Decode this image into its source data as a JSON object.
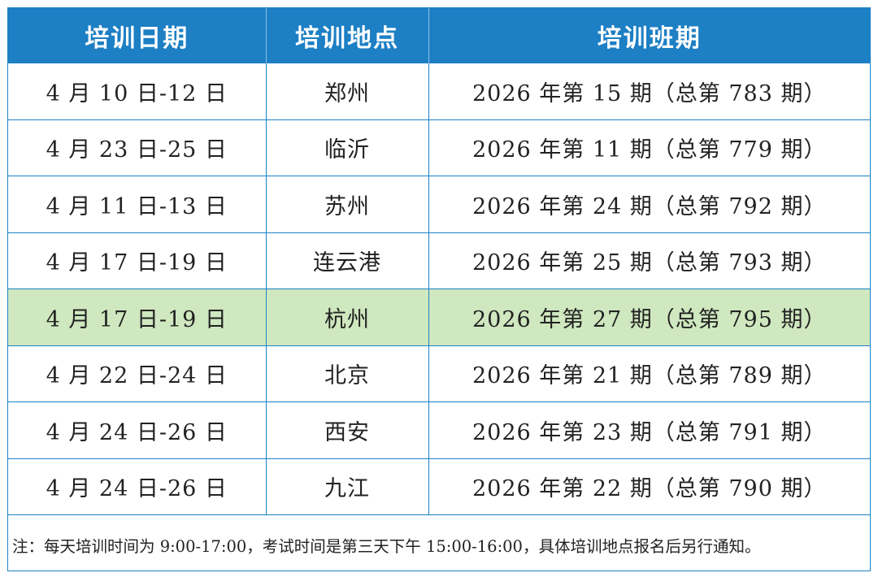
{
  "table": {
    "headers": [
      "培训日期",
      "培训地点",
      "培训班期"
    ],
    "rows": [
      {
        "date": "4 月 10 日-12 日",
        "location": "郑州",
        "session": "2026 年第 15 期（总第 783 期）",
        "highlight": false
      },
      {
        "date": "4 月 23 日-25 日",
        "location": "临沂",
        "session": "2026 年第 11 期（总第 779 期）",
        "highlight": false
      },
      {
        "date": "4 月 11 日-13 日",
        "location": "苏州",
        "session": "2026 年第 24 期（总第 792 期）",
        "highlight": false
      },
      {
        "date": "4 月 17 日-19 日",
        "location": "连云港",
        "session": "2026 年第 25 期（总第 793 期）",
        "highlight": false
      },
      {
        "date": "4 月 17 日-19 日",
        "location": "杭州",
        "session": "2026 年第 27 期（总第 795 期）",
        "highlight": true
      },
      {
        "date": "4 月 22 日-24 日",
        "location": "北京",
        "session": "2026 年第 21 期（总第 789 期）",
        "highlight": false
      },
      {
        "date": "4 月 24 日-26 日",
        "location": "西安",
        "session": "2026 年第 23 期（总第 791 期）",
        "highlight": false
      },
      {
        "date": "4 月 24 日-26 日",
        "location": "九江",
        "session": "2026 年第 22 期（总第 790 期）",
        "highlight": false
      }
    ]
  },
  "note": "注：每天培训时间为 9:00-17:00，考试时间是第三天下午 15:00-16:00，具体培训地点报名后另行通知。",
  "colors": {
    "header_bg": "#1d7fc4",
    "border": "#1b82c6",
    "highlight_row": "#cfe8bf"
  }
}
